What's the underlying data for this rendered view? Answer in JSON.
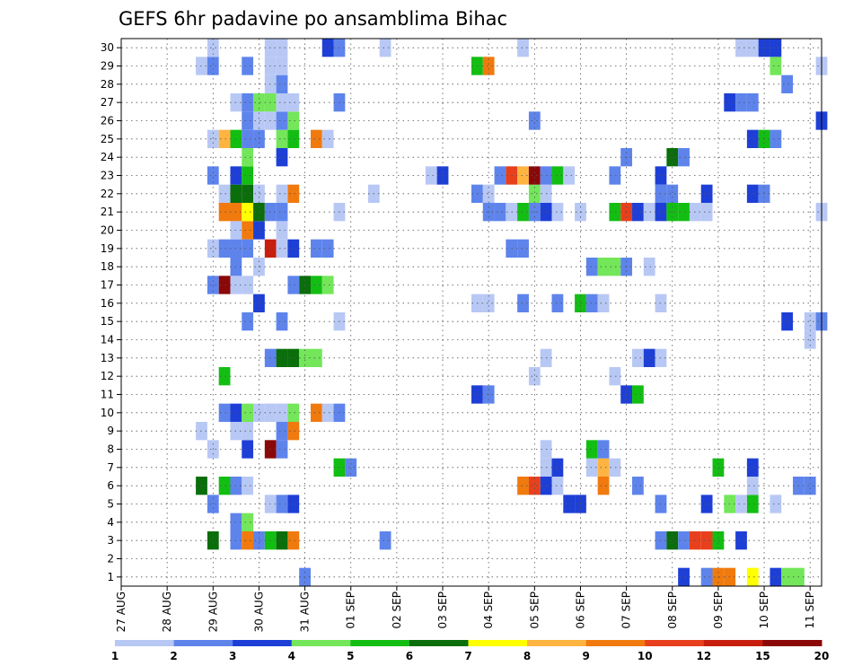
{
  "chart_data": {
    "type": "heatmap",
    "title": "GEFS 6hr padavine po ansamblima Bihac",
    "xlabel": "",
    "ylabel": "",
    "x_ticks": [
      "27 AUG",
      "28 AUG",
      "29 AUG",
      "30 AUG",
      "31 AUG",
      "01 SEP",
      "02 SEP",
      "03 SEP",
      "04 SEP",
      "05 SEP",
      "06 SEP",
      "07 SEP",
      "08 SEP",
      "09 SEP",
      "10 SEP",
      "11 SEP"
    ],
    "y_ticks": [
      "1",
      "2",
      "3",
      "4",
      "5",
      "6",
      "7",
      "8",
      "9",
      "10",
      "11",
      "12",
      "13",
      "14",
      "15",
      "16",
      "17",
      "18",
      "19",
      "20",
      "21",
      "22",
      "23",
      "24",
      "25",
      "26",
      "27",
      "28",
      "29",
      "30"
    ],
    "xlim": [
      0,
      61
    ],
    "ylim": [
      0.5,
      30.5
    ],
    "grid": true,
    "colorbar": {
      "labels": [
        "1",
        "2",
        "3",
        "4",
        "5",
        "6",
        "7",
        "8",
        "9",
        "10",
        "12",
        "15",
        "20"
      ],
      "colors": [
        "#b8c8f5",
        "#5e84ec",
        "#1e3fd6",
        "#73e65a",
        "#13be13",
        "#0a6e0a",
        "#ffff00",
        "#ffb442",
        "#f07a0e",
        "#e8401c",
        "#c81e0e",
        "#8a0808"
      ]
    },
    "cells": [
      [
        16,
        1,
        2
      ],
      [
        49,
        1,
        3
      ],
      [
        51,
        1,
        2
      ],
      [
        52,
        1,
        9
      ],
      [
        53,
        1,
        9
      ],
      [
        55,
        1,
        7
      ],
      [
        57,
        1,
        3
      ],
      [
        58,
        1,
        4
      ],
      [
        59,
        1,
        4
      ],
      [
        8,
        3,
        6
      ],
      [
        10,
        3,
        2
      ],
      [
        11,
        3,
        9
      ],
      [
        12,
        3,
        2
      ],
      [
        13,
        3,
        5
      ],
      [
        14,
        3,
        6
      ],
      [
        15,
        3,
        9
      ],
      [
        23,
        3,
        2
      ],
      [
        47,
        3,
        2
      ],
      [
        48,
        3,
        6
      ],
      [
        49,
        3,
        2
      ],
      [
        50,
        3,
        10
      ],
      [
        51,
        3,
        10
      ],
      [
        52,
        3,
        5
      ],
      [
        54,
        3,
        3
      ],
      [
        10,
        4,
        2
      ],
      [
        11,
        4,
        4
      ],
      [
        8,
        5,
        2
      ],
      [
        13,
        5,
        1
      ],
      [
        14,
        5,
        2
      ],
      [
        15,
        5,
        3
      ],
      [
        39,
        5,
        3
      ],
      [
        40,
        5,
        3
      ],
      [
        47,
        5,
        2
      ],
      [
        51,
        5,
        3
      ],
      [
        53,
        5,
        4
      ],
      [
        54,
        5,
        1
      ],
      [
        55,
        5,
        5
      ],
      [
        57,
        5,
        1
      ],
      [
        7,
        6,
        6
      ],
      [
        9,
        6,
        5
      ],
      [
        10,
        6,
        2
      ],
      [
        11,
        6,
        1
      ],
      [
        35,
        6,
        9
      ],
      [
        36,
        6,
        10
      ],
      [
        37,
        6,
        3
      ],
      [
        38,
        6,
        1
      ],
      [
        42,
        6,
        9
      ],
      [
        45,
        6,
        2
      ],
      [
        55,
        6,
        1
      ],
      [
        59,
        6,
        2
      ],
      [
        60,
        6,
        2
      ],
      [
        19,
        7,
        5
      ],
      [
        20,
        7,
        2
      ],
      [
        37,
        7,
        1
      ],
      [
        38,
        7,
        3
      ],
      [
        41,
        7,
        1
      ],
      [
        42,
        7,
        8
      ],
      [
        43,
        7,
        1
      ],
      [
        52,
        7,
        5
      ],
      [
        55,
        7,
        3
      ],
      [
        8,
        8,
        1
      ],
      [
        11,
        8,
        3
      ],
      [
        13,
        8,
        12
      ],
      [
        14,
        8,
        2
      ],
      [
        37,
        8,
        1
      ],
      [
        41,
        8,
        5
      ],
      [
        42,
        8,
        2
      ],
      [
        7,
        9,
        1
      ],
      [
        10,
        9,
        1
      ],
      [
        11,
        9,
        1
      ],
      [
        14,
        9,
        2
      ],
      [
        15,
        9,
        9
      ],
      [
        9,
        10,
        2
      ],
      [
        10,
        10,
        3
      ],
      [
        11,
        10,
        4
      ],
      [
        12,
        10,
        1
      ],
      [
        13,
        10,
        1
      ],
      [
        14,
        10,
        1
      ],
      [
        15,
        10,
        4
      ],
      [
        17,
        10,
        9
      ],
      [
        18,
        10,
        1
      ],
      [
        19,
        10,
        2
      ],
      [
        31,
        11,
        3
      ],
      [
        32,
        11,
        2
      ],
      [
        44,
        11,
        3
      ],
      [
        45,
        11,
        5
      ],
      [
        9,
        12,
        5
      ],
      [
        36,
        12,
        1
      ],
      [
        43,
        12,
        1
      ],
      [
        13,
        13,
        2
      ],
      [
        14,
        13,
        6
      ],
      [
        15,
        13,
        6
      ],
      [
        16,
        13,
        4
      ],
      [
        17,
        13,
        4
      ],
      [
        37,
        13,
        1
      ],
      [
        45,
        13,
        1
      ],
      [
        46,
        13,
        3
      ],
      [
        47,
        13,
        1
      ],
      [
        60,
        14,
        1
      ],
      [
        11,
        15,
        2
      ],
      [
        14,
        15,
        2
      ],
      [
        19,
        15,
        1
      ],
      [
        58,
        15,
        3
      ],
      [
        60,
        15,
        1
      ],
      [
        61,
        15,
        2
      ],
      [
        12,
        16,
        3
      ],
      [
        31,
        16,
        1
      ],
      [
        32,
        16,
        1
      ],
      [
        35,
        16,
        2
      ],
      [
        38,
        16,
        2
      ],
      [
        40,
        16,
        5
      ],
      [
        41,
        16,
        2
      ],
      [
        42,
        16,
        1
      ],
      [
        47,
        16,
        1
      ],
      [
        8,
        17,
        2
      ],
      [
        9,
        17,
        12
      ],
      [
        10,
        17,
        1
      ],
      [
        11,
        17,
        1
      ],
      [
        15,
        17,
        2
      ],
      [
        16,
        17,
        6
      ],
      [
        17,
        17,
        5
      ],
      [
        18,
        17,
        4
      ],
      [
        10,
        18,
        2
      ],
      [
        12,
        18,
        1
      ],
      [
        41,
        18,
        2
      ],
      [
        42,
        18,
        4
      ],
      [
        43,
        18,
        4
      ],
      [
        44,
        18,
        2
      ],
      [
        46,
        18,
        1
      ],
      [
        8,
        19,
        1
      ],
      [
        9,
        19,
        2
      ],
      [
        10,
        19,
        2
      ],
      [
        11,
        19,
        2
      ],
      [
        13,
        19,
        11
      ],
      [
        14,
        19,
        1
      ],
      [
        15,
        19,
        3
      ],
      [
        17,
        19,
        2
      ],
      [
        18,
        19,
        2
      ],
      [
        34,
        19,
        2
      ],
      [
        35,
        19,
        2
      ],
      [
        10,
        20,
        1
      ],
      [
        11,
        20,
        9
      ],
      [
        12,
        20,
        3
      ],
      [
        14,
        20,
        1
      ],
      [
        9,
        21,
        9
      ],
      [
        10,
        21,
        9
      ],
      [
        11,
        21,
        7
      ],
      [
        12,
        21,
        6
      ],
      [
        13,
        21,
        2
      ],
      [
        14,
        21,
        2
      ],
      [
        19,
        21,
        1
      ],
      [
        32,
        21,
        2
      ],
      [
        33,
        21,
        2
      ],
      [
        34,
        21,
        1
      ],
      [
        35,
        21,
        5
      ],
      [
        36,
        21,
        2
      ],
      [
        37,
        21,
        3
      ],
      [
        38,
        21,
        1
      ],
      [
        40,
        21,
        1
      ],
      [
        43,
        21,
        5
      ],
      [
        44,
        21,
        10
      ],
      [
        45,
        21,
        3
      ],
      [
        46,
        21,
        1
      ],
      [
        47,
        21,
        3
      ],
      [
        48,
        21,
        5
      ],
      [
        49,
        21,
        5
      ],
      [
        50,
        21,
        1
      ],
      [
        51,
        21,
        1
      ],
      [
        61,
        21,
        1
      ],
      [
        9,
        22,
        1
      ],
      [
        10,
        22,
        6
      ],
      [
        11,
        22,
        6
      ],
      [
        12,
        22,
        1
      ],
      [
        14,
        22,
        1
      ],
      [
        15,
        22,
        9
      ],
      [
        22,
        22,
        1
      ],
      [
        31,
        22,
        2
      ],
      [
        32,
        22,
        1
      ],
      [
        36,
        22,
        4
      ],
      [
        37,
        22,
        1
      ],
      [
        47,
        22,
        2
      ],
      [
        48,
        22,
        2
      ],
      [
        51,
        22,
        3
      ],
      [
        55,
        22,
        3
      ],
      [
        56,
        22,
        2
      ],
      [
        8,
        23,
        2
      ],
      [
        10,
        23,
        3
      ],
      [
        11,
        23,
        5
      ],
      [
        27,
        23,
        1
      ],
      [
        28,
        23,
        3
      ],
      [
        33,
        23,
        2
      ],
      [
        34,
        23,
        10
      ],
      [
        35,
        23,
        8
      ],
      [
        36,
        23,
        12
      ],
      [
        37,
        23,
        2
      ],
      [
        38,
        23,
        5
      ],
      [
        39,
        23,
        1
      ],
      [
        43,
        23,
        2
      ],
      [
        47,
        23,
        3
      ],
      [
        11,
        24,
        4
      ],
      [
        14,
        24,
        3
      ],
      [
        44,
        24,
        2
      ],
      [
        48,
        24,
        6
      ],
      [
        49,
        24,
        2
      ],
      [
        8,
        25,
        1
      ],
      [
        9,
        25,
        8
      ],
      [
        10,
        25,
        5
      ],
      [
        11,
        25,
        2
      ],
      [
        12,
        25,
        2
      ],
      [
        14,
        25,
        4
      ],
      [
        15,
        25,
        5
      ],
      [
        17,
        25,
        9
      ],
      [
        18,
        25,
        1
      ],
      [
        55,
        25,
        3
      ],
      [
        56,
        25,
        5
      ],
      [
        57,
        25,
        2
      ],
      [
        11,
        26,
        2
      ],
      [
        12,
        26,
        1
      ],
      [
        13,
        26,
        1
      ],
      [
        14,
        26,
        2
      ],
      [
        15,
        26,
        4
      ],
      [
        36,
        26,
        2
      ],
      [
        61,
        26,
        3
      ],
      [
        10,
        27,
        1
      ],
      [
        11,
        27,
        2
      ],
      [
        12,
        27,
        4
      ],
      [
        13,
        27,
        4
      ],
      [
        14,
        27,
        1
      ],
      [
        15,
        27,
        1
      ],
      [
        19,
        27,
        2
      ],
      [
        53,
        27,
        3
      ],
      [
        54,
        27,
        2
      ],
      [
        55,
        27,
        2
      ],
      [
        13,
        28,
        1
      ],
      [
        14,
        28,
        2
      ],
      [
        58,
        28,
        2
      ],
      [
        7,
        29,
        1
      ],
      [
        8,
        29,
        2
      ],
      [
        11,
        29,
        2
      ],
      [
        13,
        29,
        1
      ],
      [
        14,
        29,
        1
      ],
      [
        31,
        29,
        5
      ],
      [
        32,
        29,
        9
      ],
      [
        57,
        29,
        4
      ],
      [
        61,
        29,
        1
      ],
      [
        8,
        30,
        1
      ],
      [
        13,
        30,
        1
      ],
      [
        14,
        30,
        1
      ],
      [
        18,
        30,
        3
      ],
      [
        19,
        30,
        2
      ],
      [
        23,
        30,
        1
      ],
      [
        35,
        30,
        1
      ],
      [
        54,
        30,
        1
      ],
      [
        55,
        30,
        1
      ],
      [
        56,
        30,
        3
      ],
      [
        57,
        30,
        3
      ]
    ]
  }
}
